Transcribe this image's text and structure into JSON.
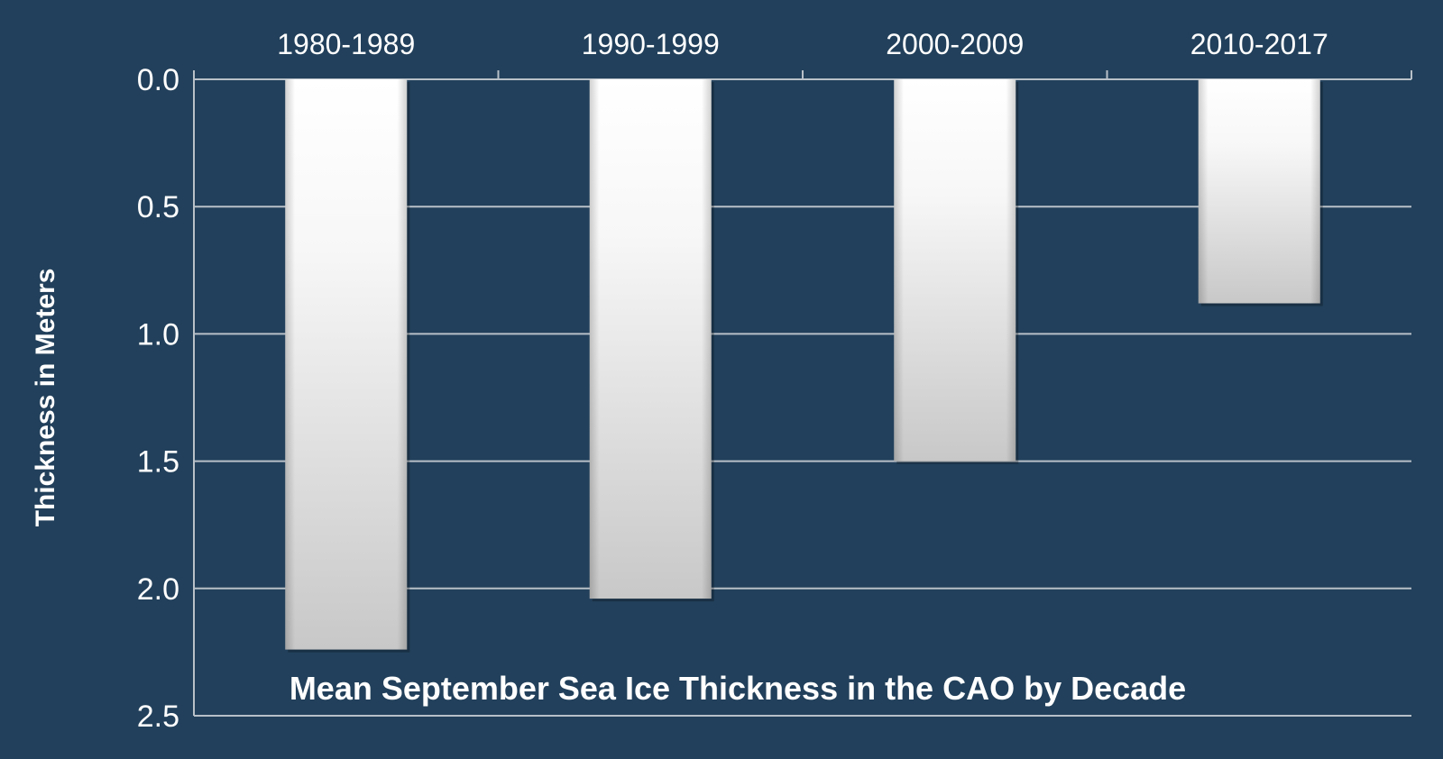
{
  "chart_data": {
    "type": "bar",
    "title": "Mean September Sea Ice Thickness in the CAO by Decade",
    "xlabel": "",
    "ylabel": "Thickness in Meters",
    "categories": [
      "1980-1989",
      "1990-1999",
      "2000-2009",
      "2010-2017"
    ],
    "values": [
      2.24,
      2.04,
      1.5,
      0.88
    ],
    "ylim": [
      0,
      2.5
    ],
    "yaxis_inverted": true,
    "x_axis_position": "top",
    "yticks": [
      "0.0",
      "0.5",
      "1.0",
      "1.5",
      "2.0",
      "2.5"
    ],
    "grid": true,
    "legend": "none",
    "colors": {
      "background": "#22405b",
      "bar": "#ffffff",
      "bar_shade": "#c9c9c9",
      "gridline": "#b8c0c8",
      "text": "#ffffff"
    }
  }
}
